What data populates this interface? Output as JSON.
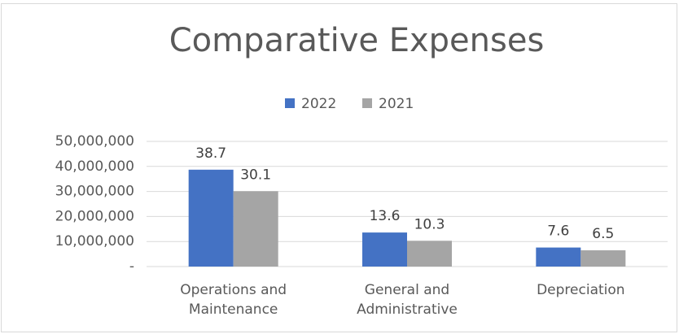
{
  "chart_data": {
    "type": "bar",
    "title": "Comparative Expenses",
    "categories": [
      "Operations and Maintenance",
      "General and Administrative",
      "Depreciation"
    ],
    "series": [
      {
        "name": "2022",
        "color": "#4472c4",
        "values": [
          38700000,
          13600000,
          7600000
        ],
        "value_labels": [
          "38.7",
          "13.6",
          "7.6"
        ]
      },
      {
        "name": "2021",
        "color": "#a5a5a5",
        "values": [
          30100000,
          10300000,
          6500000
        ],
        "value_labels": [
          "30.1",
          "10.3",
          "6.5"
        ]
      }
    ],
    "ylim": [
      0,
      50000000
    ],
    "yticks": [
      {
        "value": 0,
        "label": "-"
      },
      {
        "value": 10000000,
        "label": "10,000,000"
      },
      {
        "value": 20000000,
        "label": "20,000,000"
      },
      {
        "value": 30000000,
        "label": "30,000,000"
      },
      {
        "value": 40000000,
        "label": "40,000,000"
      },
      {
        "value": 50000000,
        "label": "50,000,000"
      }
    ],
    "grid": true,
    "legend": "top"
  }
}
